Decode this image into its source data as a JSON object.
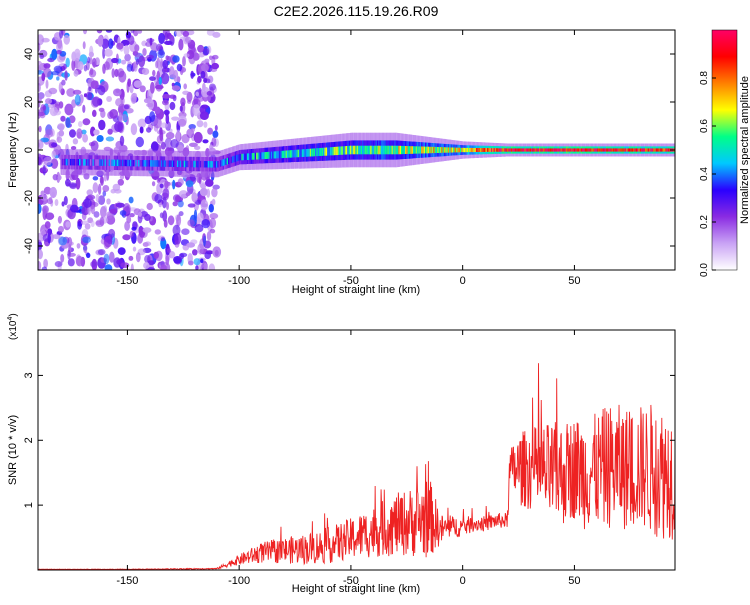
{
  "title": "C2E2.2026.115.19.26.R09",
  "chart_data": [
    {
      "type": "heatmap",
      "title": "C2E2.2026.115.19.26.R09",
      "xlabel": "Height of straight line (km)",
      "ylabel": "Frequency (Hz)",
      "xlim": [
        -190,
        95
      ],
      "ylim": [
        -50,
        50
      ],
      "xticks": [
        -150,
        -100,
        -50,
        0,
        50
      ],
      "xtick_labels": [
        "-150",
        "-100",
        "-50",
        "0",
        "50"
      ],
      "yticks": [
        -40,
        -20,
        0,
        20,
        40
      ],
      "ytick_labels": [
        "-40",
        "-20",
        "0",
        "20",
        "40"
      ],
      "colorbar": {
        "label": "Normalized spectral amplitude",
        "range": [
          0,
          1
        ],
        "ticks": [
          0.0,
          0.2,
          0.4,
          0.6,
          0.8
        ],
        "tick_labels": [
          "0.0",
          "0.2",
          "0.4",
          "0.6",
          "0.8"
        ],
        "colormap": [
          "#ffffff",
          "#c9a3f5",
          "#8a2be2",
          "#2a00ff",
          "#00c8ff",
          "#00ff88",
          "#ffff00",
          "#ff8000",
          "#ff0000",
          "#ff0066"
        ]
      },
      "signal_band": {
        "x_start": -180,
        "x_end": 95,
        "description_points_x": [
          -180,
          -110,
          -100,
          -50,
          -30,
          0,
          20,
          50,
          95
        ],
        "center_freq_hz": [
          -5,
          -6,
          -3,
          0,
          0,
          0,
          0,
          0,
          0
        ],
        "band_halfwidth_hz": [
          3,
          3,
          3,
          4,
          4,
          2,
          1.5,
          1.5,
          1.5
        ],
        "peak_amplitude": [
          0.3,
          0.35,
          0.45,
          0.55,
          0.6,
          0.7,
          0.95,
          0.95,
          0.9
        ]
      },
      "noise_region": {
        "x_start": -190,
        "x_end": -110,
        "amplitude": 0.25
      }
    },
    {
      "type": "line",
      "xlabel": "Height of straight line (km)",
      "ylabel": "SNR (10 * v/v)",
      "y_multiplier_label": "(x10",
      "y_multiplier_exp": "4",
      "y_multiplier_close": ")",
      "xlim": [
        -190,
        95
      ],
      "ylim": [
        0,
        3.7
      ],
      "xticks": [
        -150,
        -100,
        -50,
        0,
        50
      ],
      "xtick_labels": [
        "-150",
        "-100",
        "-50",
        "0",
        "50"
      ],
      "yticks": [
        1,
        2,
        3
      ],
      "ytick_labels": [
        "1",
        "2",
        "3"
      ],
      "color": "#ee2222",
      "series": [
        {
          "name": "SNR",
          "x": [
            -190,
            -150,
            -110,
            -100,
            -90,
            -80,
            -70,
            -60,
            -50,
            -40,
            -30,
            -20,
            -15,
            -10,
            -5,
            0,
            5,
            10,
            15,
            20,
            21,
            25,
            30,
            35,
            40,
            45,
            50,
            55,
            60,
            65,
            70,
            75,
            80,
            85,
            90,
            95
          ],
          "baseline": [
            0.01,
            0.01,
            0.02,
            0.15,
            0.25,
            0.28,
            0.3,
            0.35,
            0.45,
            0.55,
            0.65,
            0.7,
            0.75,
            0.6,
            0.65,
            0.65,
            0.7,
            0.7,
            0.75,
            0.75,
            1.5,
            1.5,
            1.5,
            1.45,
            1.4,
            1.4,
            1.5,
            1.4,
            1.45,
            1.5,
            1.5,
            1.45,
            1.5,
            1.45,
            1.4,
            1.4
          ],
          "spread": [
            0.005,
            0.005,
            0.01,
            0.1,
            0.2,
            0.25,
            0.3,
            0.35,
            0.4,
            0.5,
            0.6,
            0.7,
            0.8,
            0.3,
            0.2,
            0.2,
            0.15,
            0.15,
            0.15,
            0.15,
            0.4,
            0.7,
            0.8,
            0.9,
            1.0,
            1.0,
            1.0,
            1.1,
            1.1,
            1.2,
            1.2,
            1.2,
            1.2,
            1.3,
            1.3,
            1.3
          ]
        }
      ],
      "annotations": [
        {
          "x": -10,
          "y": 1.95,
          "text": ""
        },
        {
          "x": 88,
          "y": 3.65,
          "text": ""
        }
      ]
    }
  ]
}
